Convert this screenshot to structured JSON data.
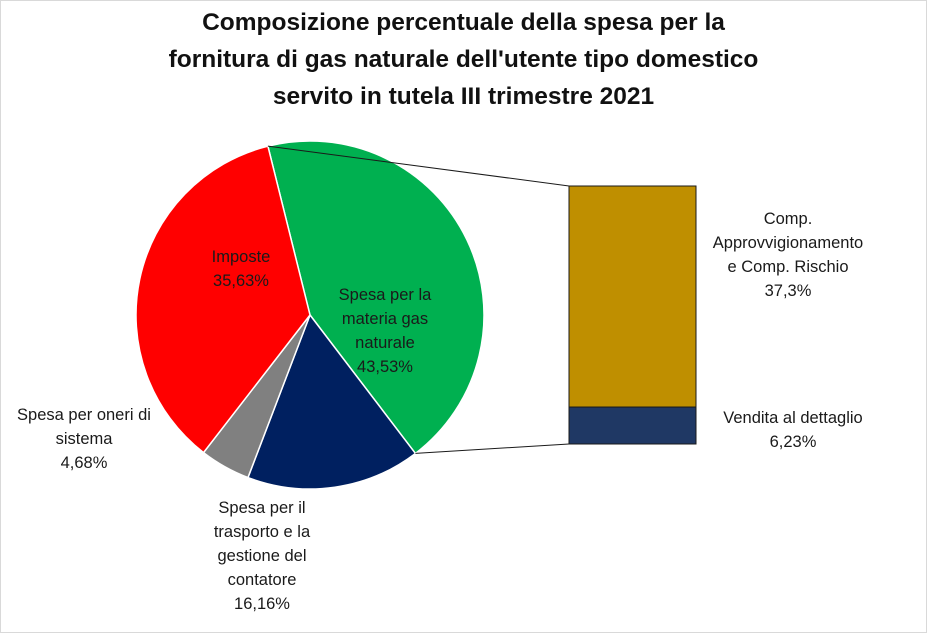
{
  "chart_data": {
    "type": "pie",
    "title_lines": [
      "Composizione percentuale della spesa per la",
      "fornitura di gas naturale dell'utente tipo domestico",
      "servito in tutela III trimestre 2021"
    ],
    "slices": [
      {
        "label_lines": [
          "Spesa per la",
          "materia gas",
          "naturale"
        ],
        "value": 43.53,
        "value_text": "43,53%",
        "color": "#00b050"
      },
      {
        "label_lines": [
          "Spesa per il",
          "trasporto e la",
          "gestione del",
          "contatore"
        ],
        "value": 16.16,
        "value_text": "16,16%",
        "color": "#002060"
      },
      {
        "label_lines": [
          "Spesa per oneri di",
          "sistema"
        ],
        "value": 4.68,
        "value_text": "4,68%",
        "color": "#808080"
      },
      {
        "label_lines": [
          "Imposte"
        ],
        "value": 35.63,
        "value_text": "35,63%",
        "color": "#ff0000"
      }
    ],
    "breakdown": {
      "of_slice": "Spesa per la materia gas naturale",
      "segments": [
        {
          "label_lines": [
            "Comp.",
            "Approvvigionamento",
            "e  Comp. Rischio"
          ],
          "value": 37.3,
          "value_text": "37,3%",
          "color": "#bf8f00"
        },
        {
          "label_lines": [
            "Vendita al dettaglio"
          ],
          "value": 6.23,
          "value_text": "6,23%",
          "color": "#1f3864"
        }
      ]
    }
  }
}
